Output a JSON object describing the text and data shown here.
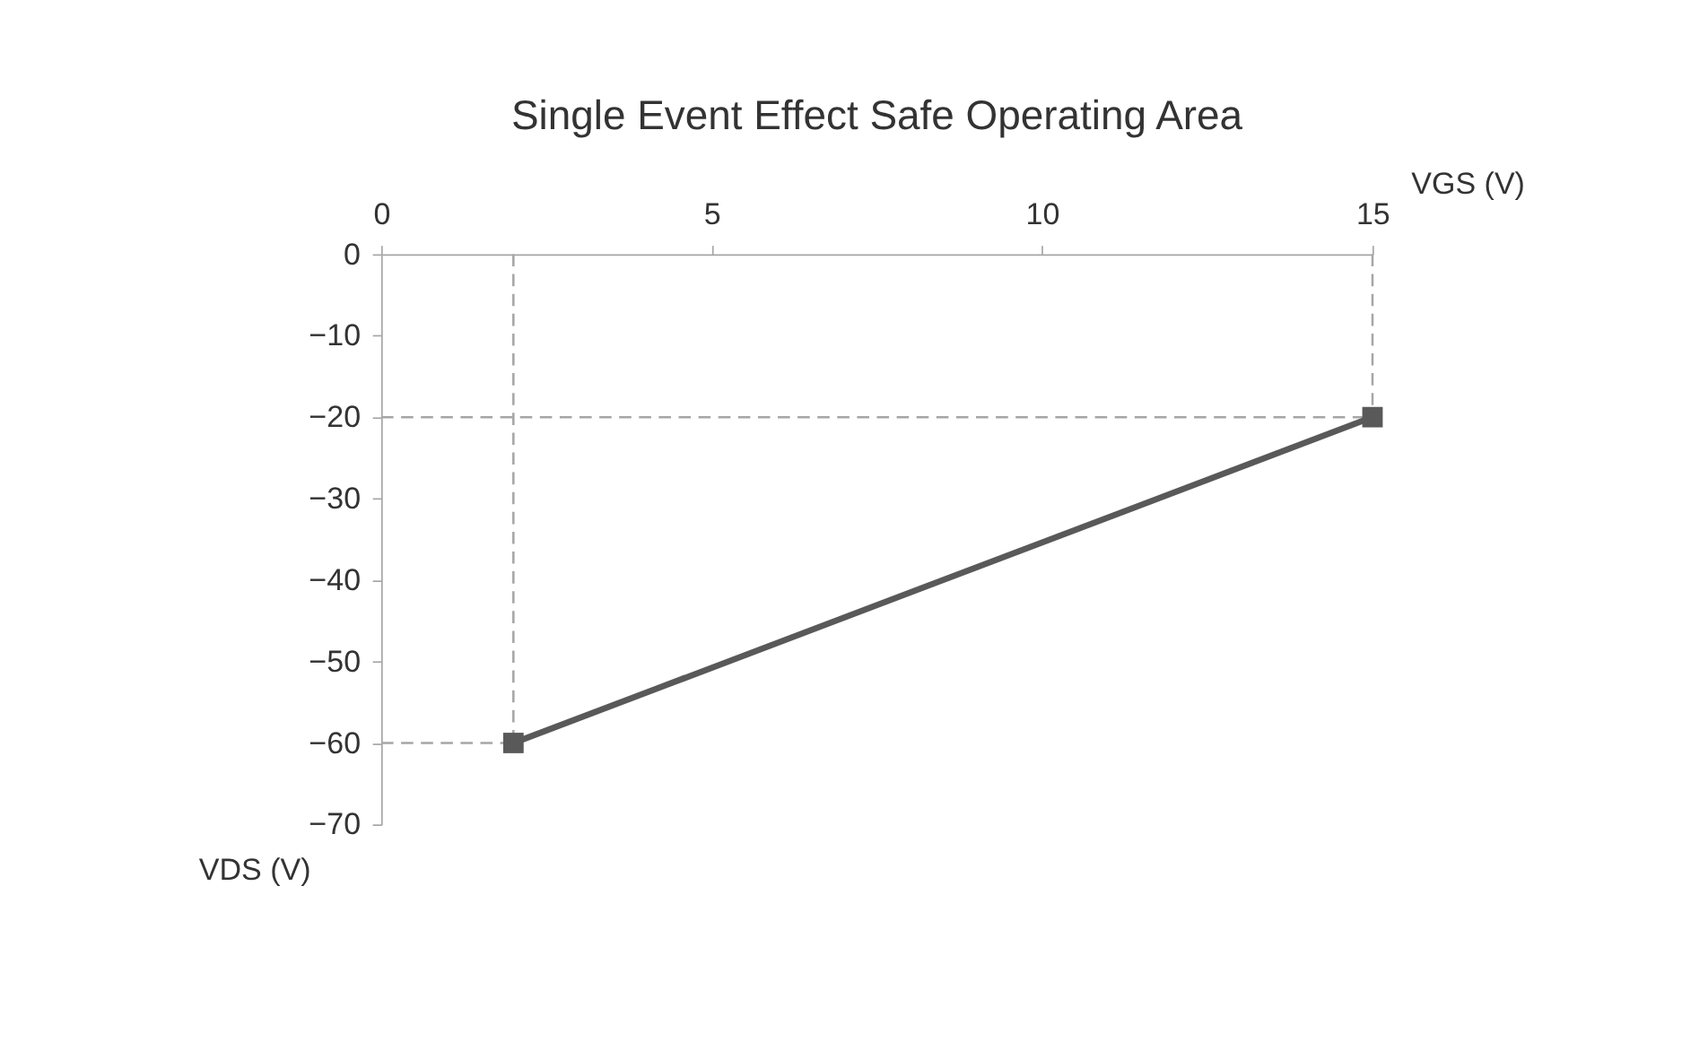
{
  "chart_data": {
    "type": "line",
    "title": "Single Event Effect Safe Operating Area",
    "xlabel": "VGS (V)",
    "ylabel": "VDS (V)",
    "xlim": [
      0,
      15
    ],
    "ylim": [
      -70,
      0
    ],
    "xticks": [
      0,
      5,
      10,
      15
    ],
    "yticks": [
      0,
      -10,
      -20,
      -30,
      -40,
      -50,
      -60,
      -70
    ],
    "grid": false,
    "series": [
      {
        "x": [
          2,
          2
        ],
        "values": [
          0,
          -60
        ],
        "color": "#a6a6a6",
        "marker": "none",
        "line_style": "dashed"
      },
      {
        "x": [
          0,
          2
        ],
        "values": [
          -60,
          -60
        ],
        "color": "#a6a6a6",
        "marker": "none",
        "line_style": "dashed"
      },
      {
        "x": [
          15,
          15
        ],
        "values": [
          0,
          -20
        ],
        "color": "#a6a6a6",
        "marker": "none",
        "line_style": "dashed"
      },
      {
        "x": [
          0,
          15
        ],
        "values": [
          -20,
          -20
        ],
        "color": "#a6a6a6",
        "marker": "none",
        "line_style": "dashed"
      },
      {
        "x": [
          2,
          15
        ],
        "values": [
          -60,
          -20
        ],
        "color": "#595959",
        "marker": "square",
        "line_style": "solid"
      }
    ]
  }
}
